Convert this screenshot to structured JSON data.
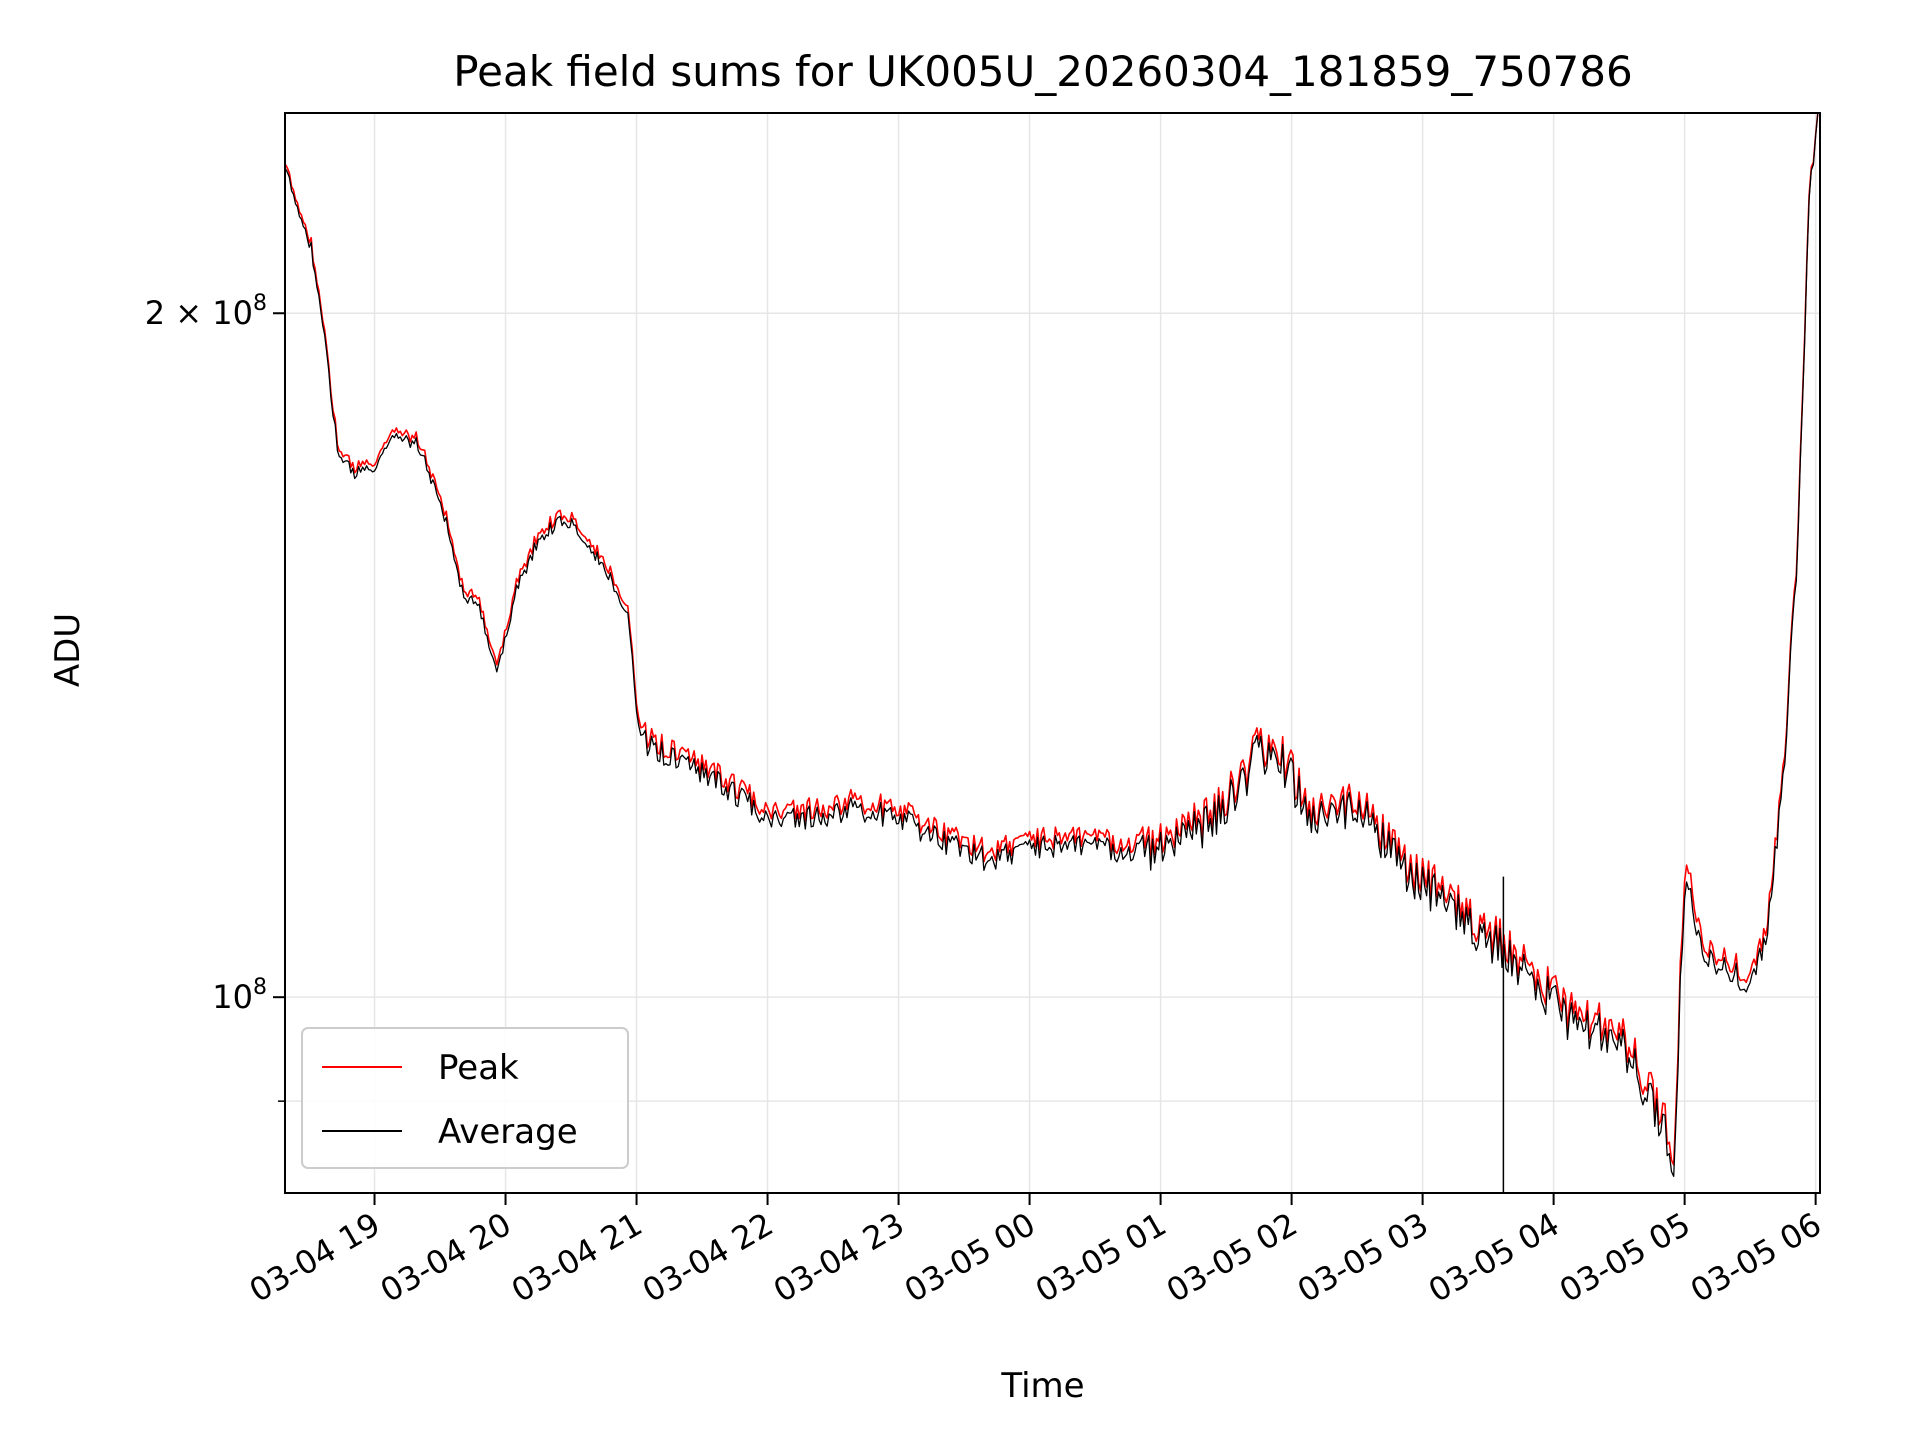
{
  "chart_data": {
    "type": "line",
    "title": "Peak field sums for UK005U_20260304_181859_750786",
    "xlabel": "Time",
    "ylabel": "ADU",
    "y_scale": "log",
    "ylim": [
      82000000,
      245000000
    ],
    "xlim": [
      "03-04 18:19",
      "03-05 06:02"
    ],
    "grid": true,
    "legend_position": "lower-left",
    "x_tick_labels": [
      "03-04 19",
      "03-04 20",
      "03-04 21",
      "03-04 22",
      "03-04 23",
      "03-05 00",
      "03-05 01",
      "03-05 02",
      "03-05 03",
      "03-05 04",
      "03-05 05",
      "03-05 06"
    ],
    "y_tick_labels": [
      {
        "value": 200000000,
        "base": "2 × 10",
        "exp": "8"
      },
      {
        "value": 100000000,
        "base": "10",
        "exp": "8"
      }
    ],
    "series": [
      {
        "name": "Peak",
        "color": "#ff0000",
        "x": [
          "03-04 18:19",
          "03-04 18:22",
          "03-04 18:31",
          "03-04 18:38",
          "03-04 18:43",
          "03-04 18:50",
          "03-04 19:00",
          "03-04 19:10",
          "03-04 19:20",
          "03-04 19:25",
          "03-04 19:32",
          "03-04 19:40",
          "03-04 19:48",
          "03-04 19:56",
          "03-04 20:05",
          "03-04 20:15",
          "03-04 20:25",
          "03-04 20:33",
          "03-04 20:42",
          "03-04 20:48",
          "03-04 20:56",
          "03-04 21:01",
          "03-04 21:05",
          "03-04 21:20",
          "03-04 21:40",
          "03-04 22:00",
          "03-04 22:20",
          "03-04 22:40",
          "03-04 23:00",
          "03-04 23:20",
          "03-04 23:40",
          "03-05 00:00",
          "03-05 00:20",
          "03-05 00:40",
          "03-05 01:00",
          "03-05 01:20",
          "03-05 01:35",
          "03-05 01:45",
          "03-05 01:55",
          "03-05 02:10",
          "03-05 02:30",
          "03-05 02:50",
          "03-05 03:10",
          "03-05 03:30",
          "03-05 03:50",
          "03-05 04:10",
          "03-05 04:30",
          "03-05 04:50",
          "03-05 04:55",
          "03-05 05:00",
          "03-05 05:10",
          "03-05 05:20",
          "03-05 05:30",
          "03-05 05:38",
          "03-05 05:45",
          "03-05 05:52",
          "03-05 05:57",
          "03-05 06:01"
        ],
        "values": [
          232000000,
          228000000,
          215000000,
          193000000,
          175000000,
          171000000,
          172000000,
          178000000,
          176000000,
          171000000,
          164000000,
          152000000,
          149000000,
          140000000,
          152000000,
          160000000,
          163000000,
          162000000,
          157000000,
          154000000,
          148000000,
          132000000,
          130000000,
          128000000,
          125000000,
          121000000,
          121000000,
          122000000,
          121000000,
          118000000,
          116000000,
          117000000,
          118000000,
          117000000,
          117000000,
          120000000,
          124000000,
          129000000,
          128000000,
          121000000,
          122000000,
          115000000,
          111000000,
          107000000,
          103000000,
          98000000,
          97000000,
          89000000,
          86000000,
          114000000,
          105000000,
          104000000,
          102000000,
          108000000,
          125000000,
          160000000,
          225000000,
          245000000
        ]
      },
      {
        "name": "Average",
        "color": "#000000",
        "x": [
          "03-04 18:19",
          "03-04 18:22",
          "03-04 18:31",
          "03-04 18:38",
          "03-04 18:43",
          "03-04 18:50",
          "03-04 19:00",
          "03-04 19:10",
          "03-04 19:20",
          "03-04 19:25",
          "03-04 19:32",
          "03-04 19:40",
          "03-04 19:48",
          "03-04 19:56",
          "03-04 20:05",
          "03-04 20:15",
          "03-04 20:25",
          "03-04 20:33",
          "03-04 20:42",
          "03-04 20:48",
          "03-04 20:56",
          "03-04 21:01",
          "03-04 21:05",
          "03-04 21:20",
          "03-04 21:40",
          "03-04 22:00",
          "03-04 22:20",
          "03-04 22:40",
          "03-04 23:00",
          "03-04 23:20",
          "03-04 23:40",
          "03-05 00:00",
          "03-05 00:20",
          "03-05 00:40",
          "03-05 01:00",
          "03-05 01:20",
          "03-05 01:35",
          "03-05 01:45",
          "03-05 01:55",
          "03-05 02:10",
          "03-05 02:30",
          "03-05 02:50",
          "03-05 03:10",
          "03-05 03:30",
          "03-05 03:50",
          "03-05 04:10",
          "03-05 04:30",
          "03-05 04:50",
          "03-05 04:55",
          "03-05 05:00",
          "03-05 05:10",
          "03-05 05:20",
          "03-05 05:30",
          "03-05 05:38",
          "03-05 05:45",
          "03-05 05:52",
          "03-05 05:57",
          "03-05 06:01"
        ],
        "values": [
          231000000,
          227000000,
          214000000,
          192000000,
          174000000,
          170000000,
          171000000,
          177000000,
          175000000,
          170000000,
          163000000,
          151000000,
          148000000,
          139000000,
          151000000,
          159000000,
          162000000,
          161000000,
          156000000,
          153000000,
          147000000,
          131000000,
          129000000,
          127000000,
          124000000,
          120000000,
          120000000,
          121000000,
          120000000,
          117000000,
          115000000,
          116000000,
          117000000,
          116000000,
          116000000,
          119000000,
          123000000,
          128000000,
          127000000,
          120000000,
          121000000,
          114000000,
          110000000,
          106000000,
          102000000,
          97000000,
          96000000,
          88000000,
          85000000,
          112000000,
          104000000,
          103000000,
          101000000,
          107000000,
          124000000,
          159000000,
          224000000,
          245000000
        ]
      }
    ]
  }
}
